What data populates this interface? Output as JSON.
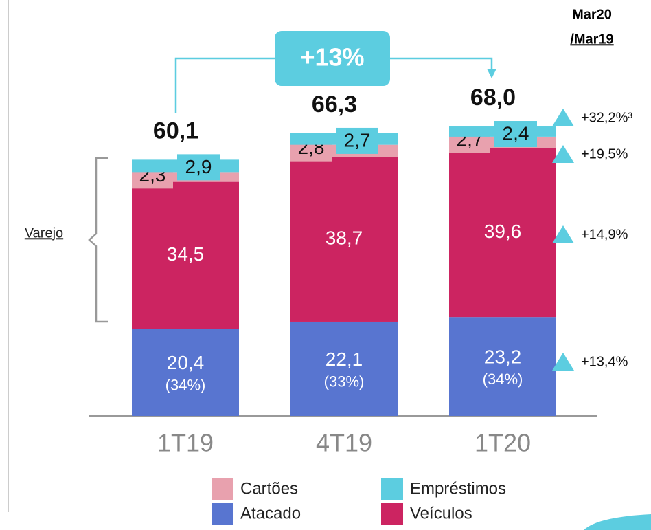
{
  "chart_data": {
    "type": "bar",
    "stacked": true,
    "header": [
      "Mar20",
      "/Mar19"
    ],
    "annotation": "+13%",
    "group_label": "Varejo",
    "categories": [
      "1T19",
      "4T19",
      "1T20"
    ],
    "totals": [
      60.1,
      66.3,
      68.0
    ],
    "total_labels": [
      "60,1",
      "66,3",
      "68,0"
    ],
    "series": [
      {
        "name": "Atacado",
        "color": "#5875d0",
        "values": [
          20.4,
          22.1,
          23.2
        ],
        "value_labels": [
          "20,4",
          "22,1",
          "23,2"
        ],
        "share_labels": [
          "(34%)",
          "(33%)",
          "(34%)"
        ],
        "growth_label": "+13,4%"
      },
      {
        "name": "Veículos",
        "color": "#cc2461",
        "values": [
          34.5,
          38.7,
          39.6
        ],
        "value_labels": [
          "34,5",
          "38,7",
          "39,6"
        ],
        "growth_label": "+14,9%"
      },
      {
        "name": "Cartões",
        "color": "#e8a1ae",
        "values": [
          2.3,
          2.8,
          2.7
        ],
        "value_labels": [
          "2,3",
          "2,8",
          "2,7"
        ],
        "growth_label": "+19,5%"
      },
      {
        "name": "Empréstimos",
        "color": "#5ccde0",
        "values": [
          2.9,
          2.7,
          2.4
        ],
        "value_labels": [
          "2,9",
          "2,7",
          "2,4"
        ],
        "growth_label": "+32,2%³"
      }
    ]
  }
}
